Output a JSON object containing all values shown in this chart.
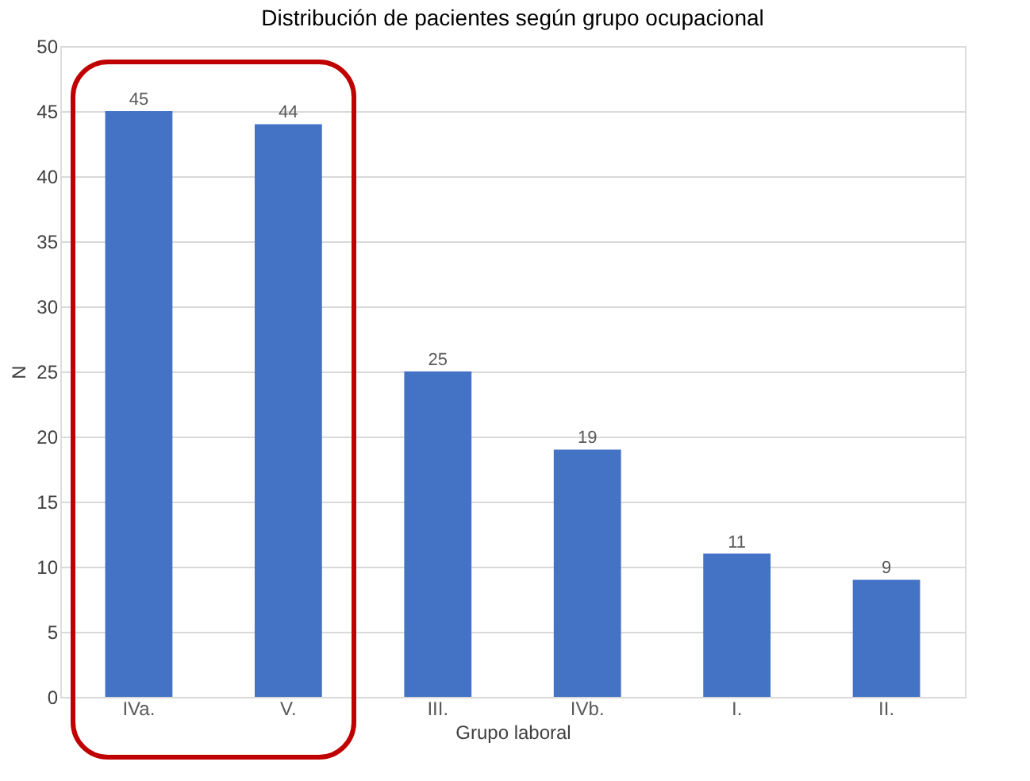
{
  "chart_data": {
    "type": "bar",
    "title": "Distribución de pacientes según grupo ocupacional",
    "xlabel": "Grupo laboral",
    "ylabel": "N",
    "categories": [
      "IVa.",
      "V.",
      "III.",
      "IVb.",
      "I.",
      "II."
    ],
    "values": [
      45,
      44,
      25,
      19,
      11,
      9
    ],
    "color": "#4472c4",
    "data_labels": true,
    "ylim": [
      0,
      50
    ],
    "yticks": [
      0,
      5,
      10,
      15,
      20,
      25,
      30,
      35,
      40,
      45,
      50
    ],
    "grid": "y"
  }
}
